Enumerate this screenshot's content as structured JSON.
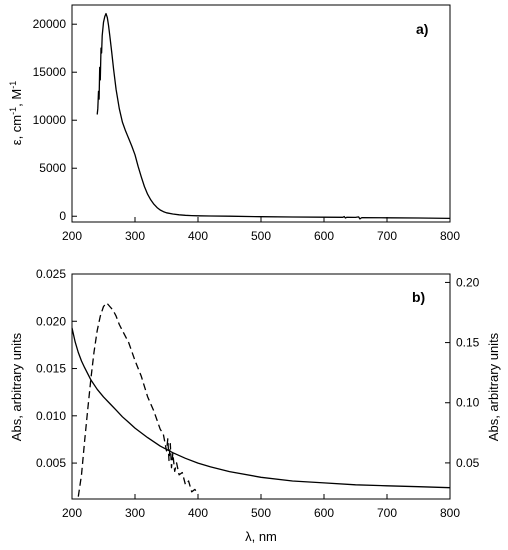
{
  "chart_data": [
    {
      "type": "line",
      "panel_label": "a)",
      "ylabel_main": "ε, cm",
      "ylabel_sup1": "-1",
      "ylabel_mid": ", M",
      "ylabel_sup2": "-1",
      "xlim": [
        200,
        800
      ],
      "ylim": [
        -600,
        22000
      ],
      "xticks": [
        200,
        300,
        400,
        500,
        600,
        700,
        800
      ],
      "yticks": [
        0,
        5000,
        10000,
        15000,
        20000
      ],
      "grid": false,
      "series": [
        {
          "style": "solid",
          "x": [
            240,
            241,
            242,
            243,
            244,
            245,
            246,
            247,
            248,
            250,
            252,
            254,
            256,
            258,
            260,
            263,
            266,
            270,
            275,
            280,
            285,
            290,
            295,
            300,
            305,
            310,
            315,
            320,
            325,
            330,
            335,
            340,
            345,
            350,
            360,
            370,
            380,
            390,
            400,
            420,
            450,
            500,
            550,
            600,
            630,
            632,
            634,
            636,
            650,
            655,
            657,
            660,
            700,
            750,
            800
          ],
          "y": [
            10600,
            11200,
            13000,
            12200,
            15500,
            14200,
            17500,
            17000,
            18800,
            20200,
            20800,
            21100,
            20700,
            19900,
            18800,
            17100,
            15300,
            13200,
            11200,
            9800,
            8900,
            8100,
            7300,
            6400,
            5200,
            4100,
            3100,
            2300,
            1700,
            1250,
            900,
            650,
            480,
            360,
            230,
            150,
            100,
            70,
            50,
            20,
            0,
            -50,
            -80,
            -100,
            -110,
            -40,
            -180,
            -110,
            -120,
            -70,
            -280,
            -140,
            -160,
            -180,
            -220
          ]
        }
      ]
    },
    {
      "type": "line",
      "panel_label": "b)",
      "xlabel": "λ, nm",
      "ylabel": "Abs, arbitrary units",
      "ylabel_right": "Abs, arbitrary units",
      "xlim": [
        200,
        800
      ],
      "ylim": [
        0.0012,
        0.025
      ],
      "ylim_right": [
        0.02,
        0.207
      ],
      "xticks": [
        200,
        300,
        400,
        500,
        600,
        700,
        800
      ],
      "yticks": [
        0.005,
        0.01,
        0.015,
        0.02,
        0.025
      ],
      "ytick_labels": [
        "0.005",
        "0.010",
        "0.015",
        "0.020",
        "0.025"
      ],
      "yticks_right": [
        0.05,
        0.1,
        0.15,
        0.2
      ],
      "ytick_labels_right": [
        "0.05",
        "0.10",
        "0.15",
        "0.20"
      ],
      "grid": false,
      "series": [
        {
          "style": "solid",
          "axis": "left",
          "x": [
            200,
            205,
            210,
            215,
            220,
            230,
            240,
            250,
            260,
            270,
            280,
            290,
            300,
            320,
            340,
            360,
            380,
            400,
            420,
            450,
            500,
            550,
            600,
            650,
            700,
            750,
            800
          ],
          "y": [
            0.0193,
            0.0178,
            0.0167,
            0.0158,
            0.0151,
            0.0138,
            0.0128,
            0.012,
            0.0113,
            0.0106,
            0.0099,
            0.0093,
            0.0087,
            0.0077,
            0.0068,
            0.0061,
            0.0055,
            0.005,
            0.0046,
            0.0041,
            0.0035,
            0.0031,
            0.0029,
            0.0027,
            0.0026,
            0.0025,
            0.0024
          ]
        },
        {
          "style": "dashed",
          "axis": "right",
          "x": [
            210,
            215,
            220,
            225,
            230,
            235,
            240,
            245,
            250,
            255,
            260,
            265,
            270,
            275,
            280,
            290,
            300,
            310,
            320,
            330,
            340,
            345,
            350,
            352,
            354,
            356,
            358,
            360,
            363,
            366,
            370,
            375,
            380,
            385,
            390,
            395,
            400
          ],
          "y": [
            0.022,
            0.04,
            0.068,
            0.095,
            0.12,
            0.142,
            0.16,
            0.172,
            0.18,
            0.183,
            0.18,
            0.177,
            0.172,
            0.165,
            0.16,
            0.15,
            0.135,
            0.122,
            0.105,
            0.093,
            0.078,
            0.074,
            0.06,
            0.07,
            0.052,
            0.066,
            0.046,
            0.058,
            0.043,
            0.05,
            0.04,
            0.042,
            0.032,
            0.035,
            0.026,
            0.028,
            0.024
          ]
        }
      ]
    }
  ]
}
